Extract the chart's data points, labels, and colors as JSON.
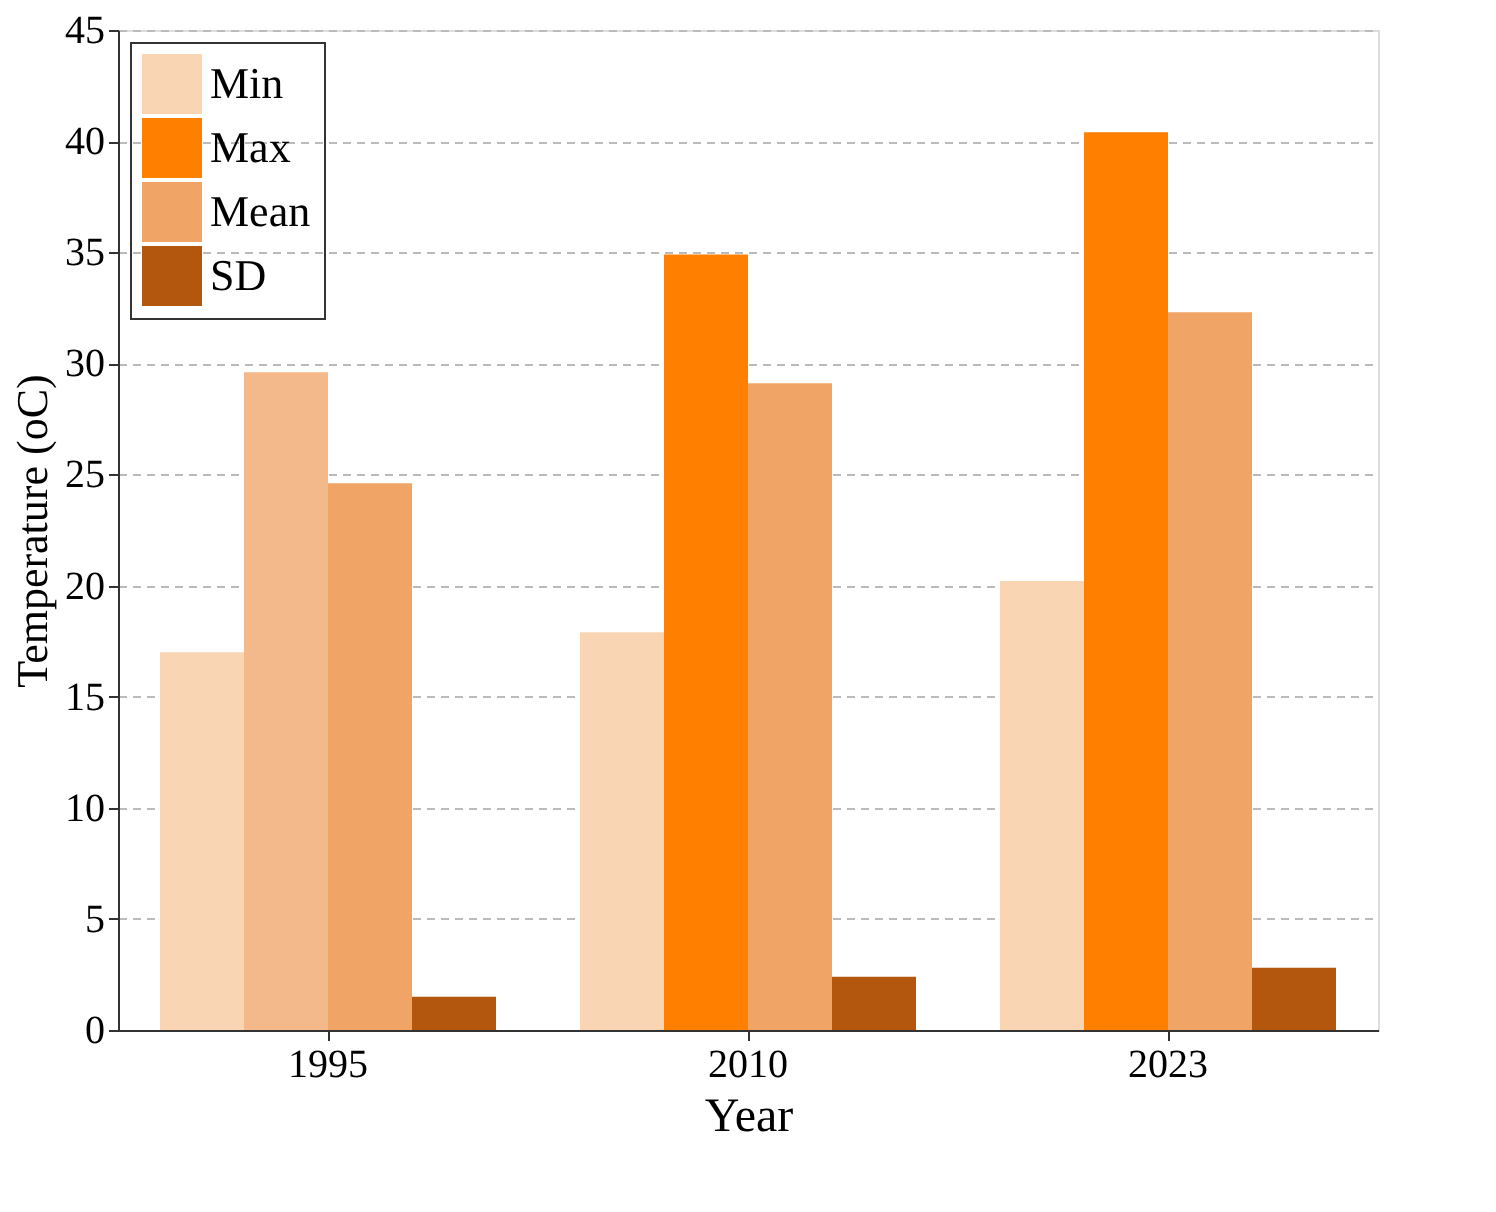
{
  "chart_data": {
    "type": "bar",
    "xlabel": "Year",
    "ylabel": "Temperature (oC)",
    "categories": [
      "1995",
      "2010",
      "2023"
    ],
    "series": [
      {
        "name": "Min",
        "color": "#f9d5b4",
        "values": [
          17.0,
          17.9,
          20.2
        ]
      },
      {
        "name": "Max",
        "color": "#ff8000",
        "colors": [
          "#f4b98a",
          "#ff8000",
          "#ff8000"
        ],
        "values": [
          29.6,
          34.9,
          40.4
        ]
      },
      {
        "name": "Mean",
        "color": "#f0a465",
        "values": [
          24.6,
          29.1,
          32.3
        ]
      },
      {
        "name": "SD",
        "color": "#b3570e",
        "values": [
          1.5,
          2.4,
          2.8
        ]
      }
    ],
    "ylim": [
      0,
      45
    ],
    "yticks": [
      0,
      5,
      10,
      15,
      20,
      25,
      30,
      35,
      40,
      45
    ],
    "grid": "y",
    "legend": "top left"
  }
}
